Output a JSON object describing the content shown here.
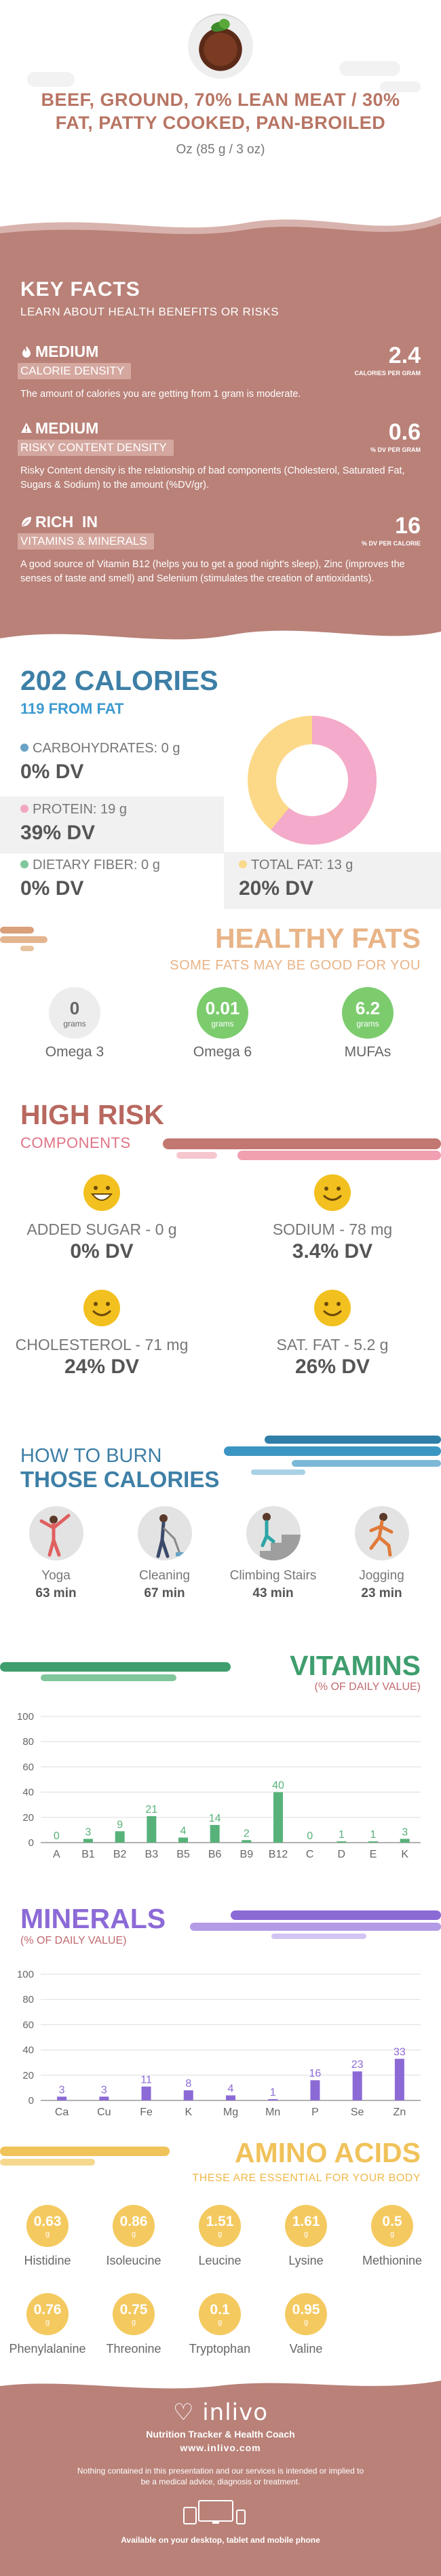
{
  "header": {
    "title": "BEEF, GROUND, 70% LEAN MEAT / 30% FAT, PATTY COOKED, PAN-BROILED",
    "portion": "Oz (85 g / 3 oz)",
    "food_icon": "beef-plate-icon"
  },
  "key_facts": {
    "title": "KEY FACTS",
    "subtitle": "LEARN ABOUT HEALTH BENEFITS OR RISKS",
    "items": [
      {
        "level": "MEDIUM",
        "name": "CALORIE DENSITY",
        "value": "2.4",
        "unit": "CALORIES PER GRAM",
        "desc": "The amount of calories you are getting from 1 gram is moderate.",
        "icon": "flame-icon"
      },
      {
        "level": "MEDIUM",
        "name": "RISKY CONTENT DENSITY",
        "value": "0.6",
        "unit": "% DV PER GRAM",
        "desc": "Risky Content density is the relationship of bad components (Cholesterol, Saturated Fat, Sugars & Sodium) to the amount (%DV/gr).",
        "icon": "warning-icon"
      },
      {
        "level": "RICH",
        "level_suffix": "IN",
        "name": "VITAMINS & MINERALS",
        "value": "16",
        "unit": "% DV PER CALORIE",
        "desc": "A good source of Vitamin B12 (helps you to get a good night's sleep), Zinc (improves the senses of taste and smell) and Selenium (stimulates the creation of antioxidants).",
        "icon": "leaf-icon"
      }
    ]
  },
  "calories": {
    "title": "202 CALORIES",
    "from_fat": "119 FROM FAT",
    "nutrients": [
      {
        "label": "CARBOHYDRATES: 0 g",
        "dv": "0% DV",
        "color": "#6aa3c4"
      },
      {
        "label": "PROTEIN: 19 g",
        "dv": "39% DV",
        "color": "#f2a6c2"
      },
      {
        "label": "DIETARY FIBER: 0 g",
        "dv": "0% DV",
        "color": "#7fc79a"
      },
      {
        "label": "TOTAL FAT: 13 g",
        "dv": "20% DV",
        "color": "#f9d98a"
      }
    ],
    "donut": {
      "protein_share": 0.61,
      "fat_share": 0.39,
      "protein_color": "#f4aacb",
      "fat_color": "#fbd988"
    }
  },
  "healthy_fats": {
    "title": "HEALTHY FATS",
    "subtitle": "SOME FATS MAY BE GOOD FOR YOU",
    "items": [
      {
        "value": "0",
        "unit": "grams",
        "name": "Omega 3",
        "filled": false
      },
      {
        "value": "0.01",
        "unit": "grams",
        "name": "Omega 6",
        "filled": true
      },
      {
        "value": "6.2",
        "unit": "grams",
        "name": "MUFAs",
        "filled": true
      }
    ],
    "accent": "#7ccc6e"
  },
  "high_risk": {
    "title": "HIGH RISK",
    "subtitle": "COMPONENTS",
    "items": [
      {
        "label": "ADDED SUGAR - 0 g",
        "dv": "0% DV",
        "face": "grin-face-icon"
      },
      {
        "label": "SODIUM - 78 mg",
        "dv": "3.4% DV",
        "face": "smile-face-icon"
      },
      {
        "label": "CHOLESTEROL - 71 mg",
        "dv": "24% DV",
        "face": "smile-face-icon"
      },
      {
        "label": "SAT. FAT - 5.2 g",
        "dv": "26% DV",
        "face": "smile-face-icon"
      }
    ]
  },
  "burn": {
    "how": "HOW TO BURN",
    "title": "THOSE CALORIES",
    "activities": [
      {
        "name": "Yoga",
        "minutes": "63 min",
        "icon": "yoga-icon"
      },
      {
        "name": "Cleaning",
        "minutes": "67 min",
        "icon": "cleaning-icon"
      },
      {
        "name": "Climbing Stairs",
        "minutes": "43 min",
        "icon": "climbing-stairs-icon"
      },
      {
        "name": "Jogging",
        "minutes": "23 min",
        "icon": "jogging-icon"
      }
    ]
  },
  "vitamins": {
    "title": "VITAMINS",
    "subtitle": "(% OF DAILY VALUE)"
  },
  "minerals": {
    "title": "MINERALS",
    "subtitle": "(% OF DAILY VALUE)"
  },
  "chart_data": [
    {
      "type": "bar",
      "title": "VITAMINS",
      "subtitle": "(% OF DAILY VALUE)",
      "categories": [
        "A",
        "B1",
        "B2",
        "B3",
        "B5",
        "B6",
        "B9",
        "B12",
        "C",
        "D",
        "E",
        "K"
      ],
      "values": [
        0,
        3,
        9,
        21,
        4,
        14,
        2,
        40,
        0,
        1,
        1,
        3
      ],
      "yticks": [
        0,
        20,
        40,
        60,
        80,
        100
      ],
      "ylim": [
        0,
        100
      ],
      "grid": true,
      "color": "#57b27a"
    },
    {
      "type": "bar",
      "title": "MINERALS",
      "subtitle": "(% OF DAILY VALUE)",
      "categories": [
        "Ca",
        "Cu",
        "Fe",
        "K",
        "Mg",
        "Mn",
        "P",
        "Se",
        "Zn"
      ],
      "values": [
        3,
        3,
        11,
        8,
        4,
        1,
        16,
        23,
        33
      ],
      "yticks": [
        0,
        20,
        40,
        60,
        80,
        100
      ],
      "ylim": [
        0,
        100
      ],
      "grid": true,
      "color": "#8c6ad6"
    }
  ],
  "amino": {
    "title": "AMINO ACIDS",
    "subtitle": "THESE ARE ESSENTIAL FOR YOUR BODY",
    "unit": "g",
    "items": [
      {
        "value": "0.63",
        "name": "Histidine"
      },
      {
        "value": "0.86",
        "name": "Isoleucine"
      },
      {
        "value": "1.51",
        "name": "Leucine"
      },
      {
        "value": "1.61",
        "name": "Lysine"
      },
      {
        "value": "0.5",
        "name": "Methionine"
      },
      {
        "value": "0.76",
        "name": "Phenylalanine"
      },
      {
        "value": "0.75",
        "name": "Threonine"
      },
      {
        "value": "0.1",
        "name": "Tryptophan"
      },
      {
        "value": "0.95",
        "name": "Valine"
      }
    ]
  },
  "footer": {
    "logo": "inlivo",
    "tagline": "Nutrition Tracker & Health Coach",
    "url": "www.inlivo.com",
    "disclaimer": "Nothing contained in this presentation and our services is intended or implied to be a medical advice, diagnosis or treatment.",
    "available": "Available on your desktop, tablet and mobile phone"
  }
}
